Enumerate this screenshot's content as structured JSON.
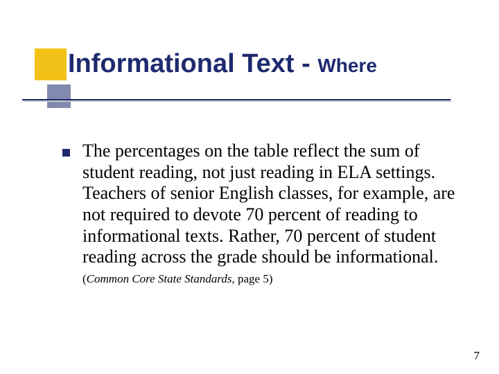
{
  "title": {
    "main": "Informational Text",
    "separator": " - ",
    "sub": "Where",
    "color": "#1e2a6e",
    "main_fontsize": 38,
    "sub_fontsize": 28
  },
  "decorations": {
    "yellow_square_color": "#f2c218",
    "navy_square_color": "#1e2a6e",
    "underline_color": "#1e2a6e",
    "underline_shadow_color": "#c9c9c9"
  },
  "body": {
    "bullet_color": "#1e2a6e",
    "text": "The percentages on the table reflect the sum of student reading, not just reading in ELA settings. Teachers of senior English classes, for example, are not required to devote 70 percent of reading to informational texts. Rather, 70 percent of student reading across the grade should be informational.",
    "text_fontsize": 26,
    "text_color": "#000000"
  },
  "citation": {
    "prefix": "(",
    "italic": "Common Core State Standards,",
    "rest": " page 5)",
    "fontsize": 17
  },
  "page_number": "7"
}
